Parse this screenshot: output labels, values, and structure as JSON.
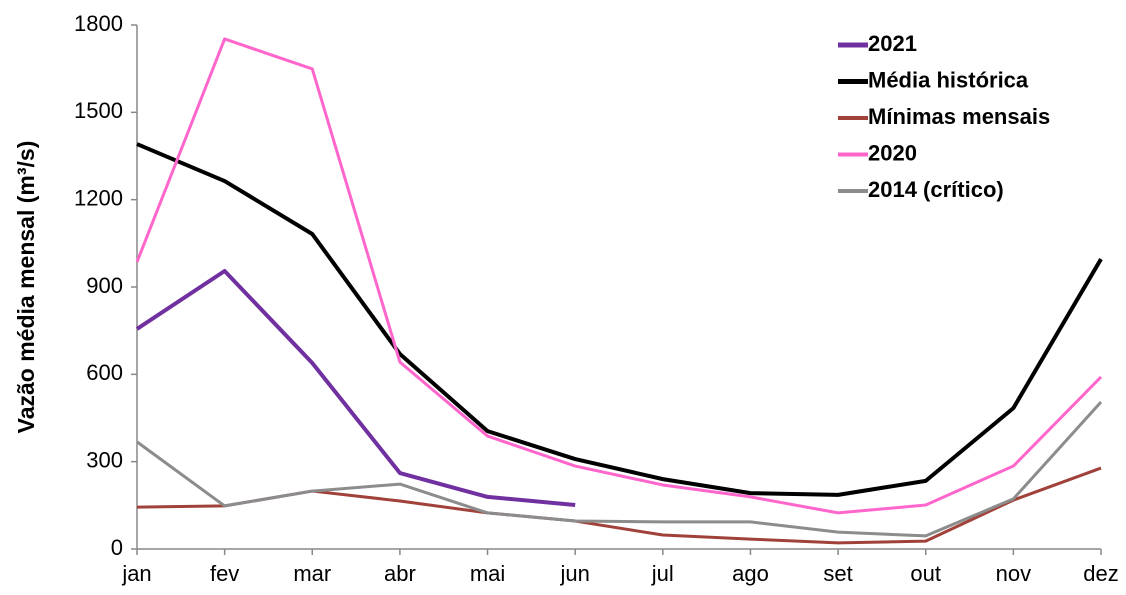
{
  "chart_data": {
    "type": "line",
    "y_label": "Vazão média mensal (m³/s)",
    "categories": [
      "jan",
      "fev",
      "mar",
      "abr",
      "mai",
      "jun",
      "jul",
      "ago",
      "set",
      "out",
      "nov",
      "dez"
    ],
    "series": [
      {
        "name": "2021",
        "color": "#7030a0",
        "width": 4,
        "values": [
          756,
          955,
          639,
          261,
          179,
          151,
          null,
          null,
          null,
          null,
          null,
          null
        ]
      },
      {
        "name": "Média histórica",
        "color": "#000000",
        "width": 4,
        "values": [
          1391,
          1264,
          1082,
          670,
          405,
          309,
          240,
          192,
          186,
          234,
          484,
          996
        ]
      },
      {
        "name": "Mínimas mensais",
        "color": "#a0413a",
        "width": 3,
        "values": [
          144,
          148,
          199,
          165,
          124,
          96,
          48,
          34,
          21,
          27,
          168,
          278
        ]
      },
      {
        "name": "2020",
        "color": "#ff66cc",
        "width": 3,
        "values": [
          986,
          1752,
          1649,
          642,
          388,
          285,
          220,
          179,
          124,
          151,
          285,
          591
        ]
      },
      {
        "name": "2014 (crítico)",
        "color": "#8c8c8c",
        "width": 3,
        "values": [
          368,
          148,
          199,
          223,
          124,
          96,
          93,
          93,
          58,
          45,
          172,
          505
        ]
      }
    ],
    "ylim": [
      0,
      1800
    ],
    "yticks": [
      0,
      300,
      600,
      900,
      1200,
      1500,
      1800
    ],
    "grid": false,
    "legend": "top-right"
  }
}
